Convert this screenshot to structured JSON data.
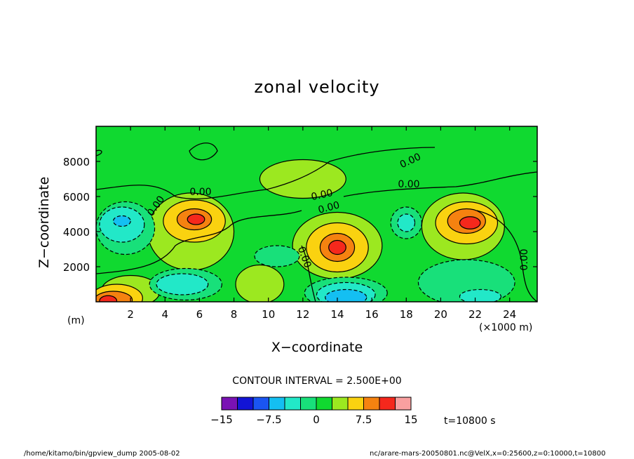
{
  "chart_data": {
    "type": "heatmap",
    "title": "zonal velocity",
    "xlabel": "X−coordinate",
    "ylabel": "Z−coordinate",
    "x_unit": "(×1000 m)",
    "y_unit": "(m)",
    "xlim": [
      0,
      25600
    ],
    "ylim": [
      0,
      10000
    ],
    "x_ticks": [
      "2",
      "4",
      "6",
      "8",
      "10",
      "12",
      "14",
      "16",
      "18",
      "20",
      "22",
      "24"
    ],
    "y_ticks": [
      "2000",
      "4000",
      "6000",
      "8000"
    ],
    "contour_interval_label": "CONTOUR INTERVAL = 2.500E+00",
    "contour_labels": [
      "0.00",
      "0.00",
      "0.00",
      "0.00",
      "0.00",
      "0.00",
      "0.00",
      "0.00"
    ],
    "colorbar": {
      "levels": [
        -15,
        -12.5,
        -10,
        -7.5,
        -5,
        -2.5,
        0,
        2.5,
        5,
        7.5,
        10,
        12.5,
        15
      ],
      "tick_labels": [
        "−15",
        "−7.5",
        "0",
        "7.5",
        "15"
      ],
      "colors": [
        "#7a12b4",
        "#1214d6",
        "#1a55f2",
        "#14bff2",
        "#22e8c8",
        "#18e07a",
        "#10d930",
        "#9ce820",
        "#fad210",
        "#f58210",
        "#f5281c",
        "#f9a0a0"
      ]
    },
    "features": [
      {
        "kind": "max",
        "x": 5700,
        "z": 4700,
        "value": 10
      },
      {
        "kind": "max",
        "x": 14000,
        "z": 3100,
        "value": 10
      },
      {
        "kind": "max",
        "x": 21500,
        "z": 4500,
        "value": 10
      },
      {
        "kind": "max",
        "x": 1200,
        "z": 200,
        "value": 10
      },
      {
        "kind": "min",
        "x": 1500,
        "z": 4600,
        "value": -7.5
      },
      {
        "kind": "min",
        "x": 14500,
        "z": 200,
        "value": -10
      },
      {
        "kind": "min",
        "x": 5000,
        "z": 1100,
        "value": -5
      },
      {
        "kind": "min",
        "x": 18000,
        "z": 4500,
        "value": -5
      }
    ],
    "time_label": "t=10800 s"
  },
  "footer": {
    "left": "/home/kitamo/bin/gpview_dump  2005-08-02",
    "right": "nc/arare-mars-20050801.nc@VelX,x=0:25600,z=0:10000,t=10800"
  }
}
